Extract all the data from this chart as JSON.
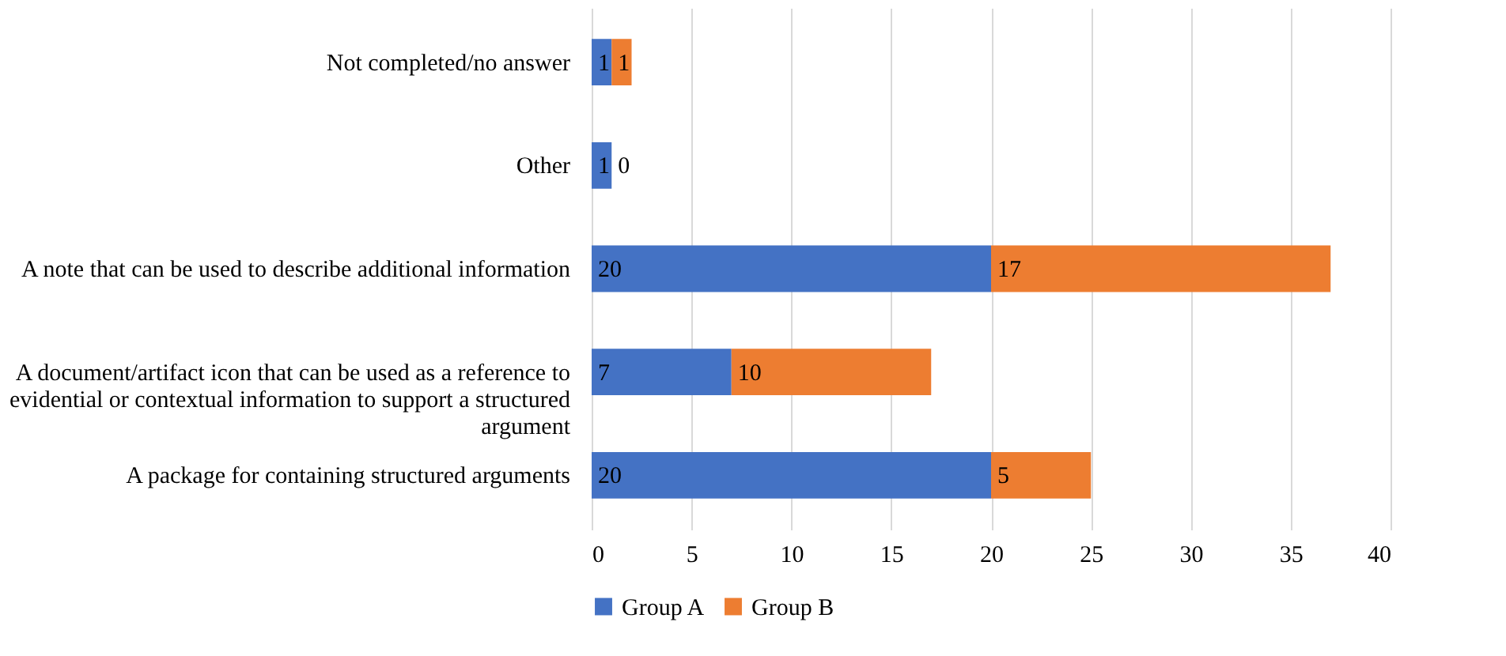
{
  "chart_data": {
    "type": "bar",
    "orientation": "horizontal",
    "stacked": true,
    "categories": [
      "Not completed/no answer",
      "Other",
      "A note that can be used to describe additional information",
      "A document/artifact icon that can be used as a reference to evidential or contextual information to support a structured argument",
      "A package for containing structured arguments"
    ],
    "series": [
      {
        "name": "Group A",
        "color": "#4472c4",
        "values": [
          1,
          1,
          20,
          7,
          20
        ]
      },
      {
        "name": "Group B",
        "color": "#ed7d31",
        "values": [
          1,
          0,
          17,
          10,
          5
        ]
      }
    ],
    "xlim": [
      0,
      40
    ],
    "xticks": [
      0,
      5,
      10,
      15,
      20,
      25,
      30,
      35,
      40
    ],
    "grid": "x",
    "legend": "bottom",
    "data_labels": true
  }
}
